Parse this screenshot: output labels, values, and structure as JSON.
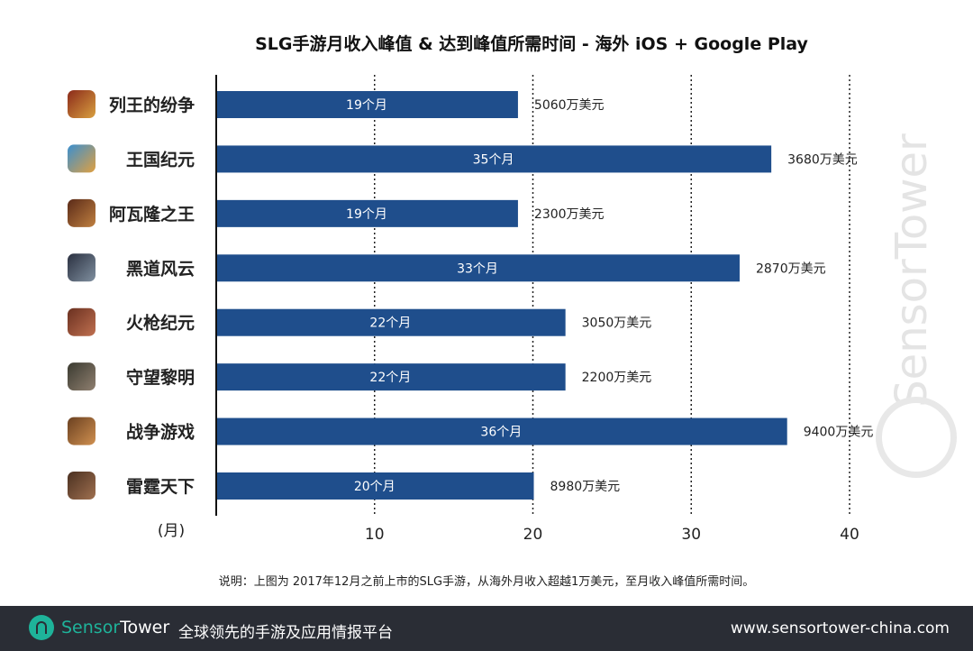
{
  "chart_data": {
    "type": "bar",
    "orientation": "horizontal",
    "title": "SLG手游月收入峰值 & 达到峰值所需时间 - 海外 iOS + Google Play",
    "xlabel": "(月)",
    "xlim": [
      0,
      40
    ],
    "xticks": [
      10,
      20,
      30,
      40
    ],
    "grid": "vertical dashed",
    "categories": [
      "列王的纷争",
      "王国纪元",
      "阿瓦隆之王",
      "黑道风云",
      "火枪纪元",
      "守望黎明",
      "战争游戏",
      "雷霆天下"
    ],
    "values": [
      19,
      35,
      19,
      33,
      22,
      22,
      36,
      20
    ],
    "bar_labels": [
      "19个月",
      "35个月",
      "19个月",
      "33个月",
      "22个月",
      "22个月",
      "36个月",
      "20个月"
    ],
    "peak_revenue_labels": [
      "5060万美元",
      "3680万美元",
      "2300万美元",
      "2870万美元",
      "3050万美元",
      "2200万美元",
      "9400万美元",
      "8980万美元"
    ],
    "bar_color": "#1f4e8c"
  },
  "note": "说明：上图为 2017年12月之前上市的SLG手游，从海外月收入超越1万美元，至月收入峰值所需时间。",
  "watermark": "SensorTower",
  "footer": {
    "brand_a": "Sensor",
    "brand_b": "Tower",
    "slogan": "全球领先的手游及应用情报平台",
    "url": "www.sensortower-china.com",
    "accent": "#1eb39a"
  }
}
